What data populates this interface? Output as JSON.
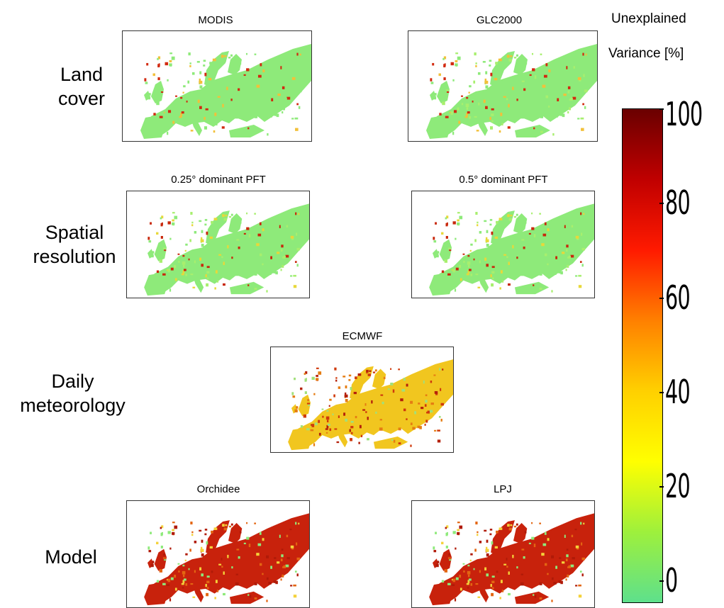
{
  "rows": [
    {
      "label_line1": "Land",
      "label_line2": "cover"
    },
    {
      "label_line1": "Spatial",
      "label_line2": "resolution"
    },
    {
      "label_line1": "Daily",
      "label_line2": "meteorology"
    },
    {
      "label_line1": "Model",
      "label_line2": ""
    }
  ],
  "panels": {
    "modis": "MODIS",
    "glc2000": "GLC2000",
    "pft025": "0.25° dominant PFT",
    "pft05": "0.5° dominant PFT",
    "ecmwf": "ECMWF",
    "orchidee": "Orchidee",
    "lpj": "LPJ"
  },
  "colorbar": {
    "title_line1": "Unexplained",
    "title_line2": "Variance [%]",
    "ticks": [
      "100",
      "80",
      "60",
      "40",
      "20",
      "0"
    ],
    "colors": [
      "#6a0000",
      "#c00000",
      "#ff1a00",
      "#ff8000",
      "#ffd000",
      "#ffff00",
      "#9ef03c",
      "#5ee08c"
    ]
  }
}
